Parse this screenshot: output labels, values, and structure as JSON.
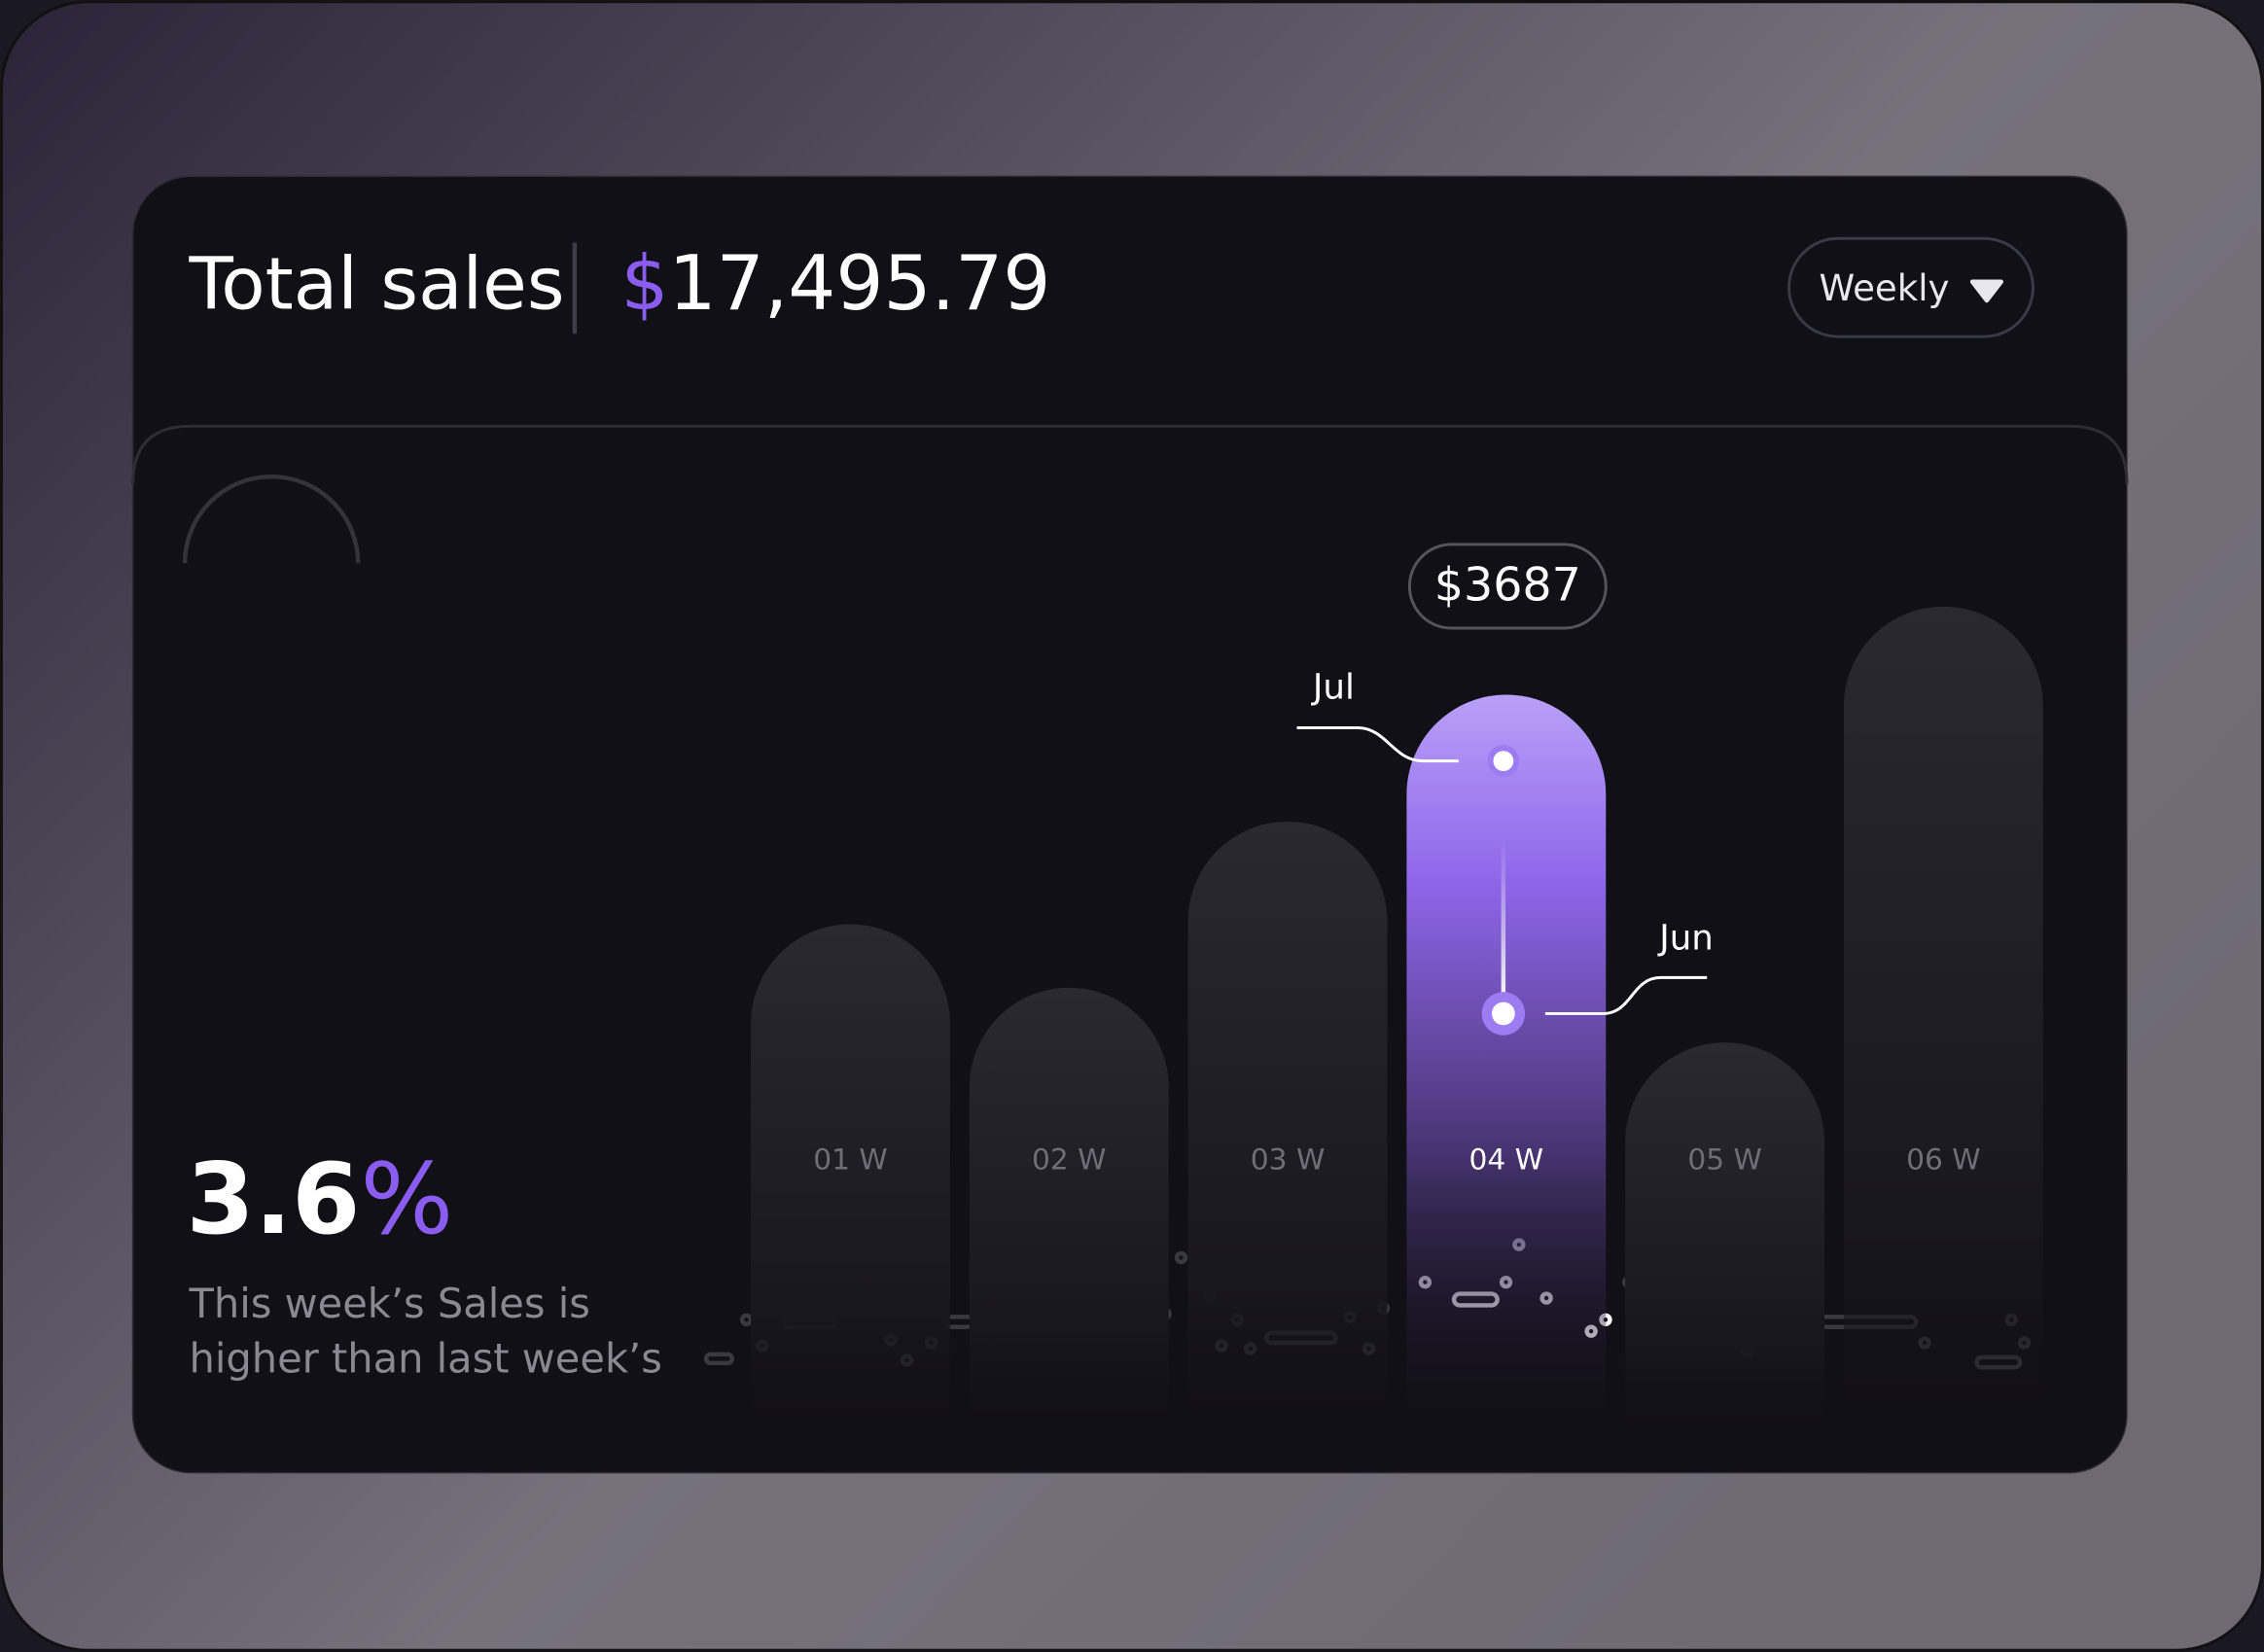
{
  "header": {
    "title": "Total sales",
    "currency": "$",
    "amount": "17,495.79",
    "period": "Weekly"
  },
  "stat": {
    "number": "3.6",
    "unit": "%",
    "caption": [
      "This week’s Sales is",
      "higher than last week’s"
    ]
  },
  "chart_data": {
    "type": "bar",
    "categories": [
      "01 W",
      "02 W",
      "03 W",
      "04 W",
      "05 W",
      "06 W"
    ],
    "values": [
      2557,
      2245,
      3062,
      3687,
      1975,
      4120
    ],
    "value_labels": [
      null,
      null,
      null,
      "$3687",
      null,
      null
    ],
    "annotations": [
      "Jul",
      "Jun"
    ],
    "color": "#2a2930",
    "active_color": "#9d7cf2"
  }
}
